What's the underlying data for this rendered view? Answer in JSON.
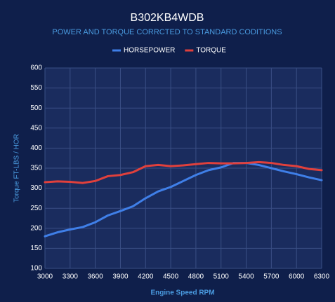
{
  "chart_data": {
    "type": "line",
    "title": "B302KB4WDB",
    "subtitle": "POWER AND TORQUE CORRCTED TO STANDARD CODITIONS",
    "x_label": "Engine Speed RPM",
    "y_label": "Torque FT-LBS / HOR",
    "x": [
      3000,
      3150,
      3300,
      3450,
      3600,
      3750,
      3900,
      4050,
      4200,
      4350,
      4500,
      4650,
      4800,
      4950,
      5100,
      5250,
      5400,
      5550,
      5700,
      5850,
      6000,
      6150,
      6300
    ],
    "series": [
      {
        "name": "HORSEPOWER",
        "color": "#3f7fe8",
        "values": [
          180,
          190,
          197,
          203,
          215,
          232,
          243,
          255,
          275,
          292,
          303,
          318,
          333,
          345,
          352,
          363,
          363,
          358,
          350,
          342,
          335,
          327,
          320
        ]
      },
      {
        "name": "TORQUE",
        "color": "#e0403c",
        "values": [
          315,
          317,
          316,
          313,
          318,
          330,
          333,
          340,
          355,
          358,
          355,
          357,
          360,
          363,
          362,
          362,
          363,
          365,
          363,
          358,
          355,
          348,
          345
        ]
      }
    ],
    "xlim": [
      3000,
      6300
    ],
    "xticks": [
      3000,
      3300,
      3600,
      3900,
      4200,
      4500,
      4800,
      5100,
      5400,
      5700,
      6000,
      6300
    ],
    "ylim": [
      100,
      600
    ],
    "yticks": [
      100,
      150,
      200,
      250,
      300,
      350,
      400,
      450,
      500,
      550,
      600
    ],
    "grid": true,
    "legend": "top"
  }
}
